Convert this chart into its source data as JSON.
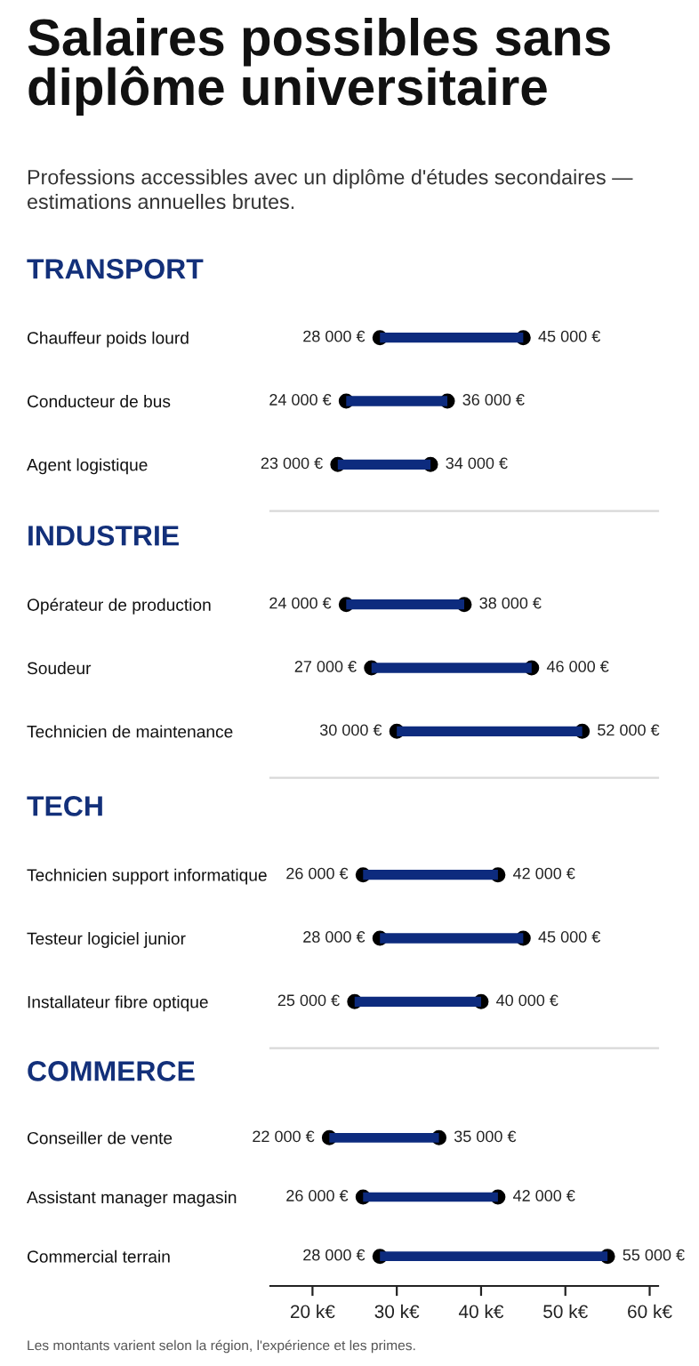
{
  "chart_data": [
    {
      "type": "other",
      "title": "Salaires possibles sans diplôme universitaire",
      "subtitle": "Professions accessibles avec un diplôme d'études secondaires — estimations annuelles brutes."
    },
    {
      "type": "bar",
      "orientation": "horizontal",
      "title": "TRANSPORT",
      "categories": [
        "Chauffeur poids lourd",
        "Conducteur de bus",
        "Agent logistique"
      ],
      "base": [
        28,
        24,
        23
      ],
      "values": [
        17,
        12,
        11
      ],
      "color": "#0d2b7e",
      "marker": "circle",
      "xlim": [
        15,
        61
      ],
      "tick_labels": "y",
      "annotations": [
        {
          "text": "28 000 €",
          "x": 28,
          "y": "Chauffeur poids lourd"
        },
        {
          "text": "45 000 €",
          "x": 45,
          "y": "Chauffeur poids lourd"
        },
        {
          "text": "24 000 €",
          "x": 24,
          "y": "Conducteur de bus"
        },
        {
          "text": "36 000 €",
          "x": 36,
          "y": "Conducteur de bus"
        },
        {
          "text": "23 000 €",
          "x": 23,
          "y": "Agent logistique"
        },
        {
          "text": "34 000 €",
          "x": 34,
          "y": "Agent logistique"
        }
      ]
    },
    {
      "type": "bar",
      "orientation": "horizontal",
      "title": "INDUSTRIE",
      "categories": [
        "Opérateur de production",
        "Soudeur",
        "Technicien de maintenance"
      ],
      "base": [
        24,
        27,
        30
      ],
      "values": [
        14,
        19,
        22
      ],
      "color": "#0d2b7e",
      "marker": "circle",
      "xlim": [
        15,
        61
      ],
      "tick_labels": "y",
      "annotations": [
        {
          "text": "24 000 €",
          "x": 24,
          "y": "Opérateur de production"
        },
        {
          "text": "38 000 €",
          "x": 38,
          "y": "Opérateur de production"
        },
        {
          "text": "27 000 €",
          "x": 27,
          "y": "Soudeur"
        },
        {
          "text": "46 000 €",
          "x": 46,
          "y": "Soudeur"
        },
        {
          "text": "30 000 €",
          "x": 30,
          "y": "Technicien de maintenance"
        },
        {
          "text": "52 000 €",
          "x": 52,
          "y": "Technicien de maintenance"
        }
      ]
    },
    {
      "type": "bar",
      "orientation": "horizontal",
      "title": "TECH",
      "categories": [
        "Technicien support informatique",
        "Testeur logiciel junior",
        "Installateur fibre optique"
      ],
      "base": [
        26,
        28,
        25
      ],
      "values": [
        16,
        17,
        15
      ],
      "color": "#0d2b7e",
      "marker": "circle",
      "xlim": [
        15,
        61
      ],
      "tick_labels": "y",
      "annotations": [
        {
          "text": "26 000 €",
          "x": 26,
          "y": "Technicien support informatique"
        },
        {
          "text": "42 000 €",
          "x": 42,
          "y": "Technicien support informatique"
        },
        {
          "text": "28 000 €",
          "x": 28,
          "y": "Testeur logiciel junior"
        },
        {
          "text": "45 000 €",
          "x": 45,
          "y": "Testeur logiciel junior"
        },
        {
          "text": "25 000 €",
          "x": 25,
          "y": "Installateur fibre optique"
        },
        {
          "text": "40 000 €",
          "x": 40,
          "y": "Installateur fibre optique"
        }
      ]
    },
    {
      "type": "bar",
      "orientation": "horizontal",
      "title": "COMMERCE",
      "categories": [
        "Conseiller de vente",
        "Assistant manager magasin",
        "Commercial terrain"
      ],
      "base": [
        22,
        26,
        28
      ],
      "values": [
        13,
        16,
        27
      ],
      "color": "#0d2b7e",
      "marker": "circle",
      "xlim": [
        15,
        61
      ],
      "xticks": [
        {
          "value": 20,
          "label": "20 k€"
        },
        {
          "value": 30,
          "label": "30 k€"
        },
        {
          "value": 40,
          "label": "40 k€"
        },
        {
          "value": 50,
          "label": "50 k€"
        },
        {
          "value": 60,
          "label": "60 k€"
        }
      ],
      "annotations": [
        {
          "text": "22 000 €",
          "x": 22,
          "y": "Conseiller de vente"
        },
        {
          "text": "35 000 €",
          "x": 35,
          "y": "Conseiller de vente"
        },
        {
          "text": "26 000 €",
          "x": 26,
          "y": "Assistant manager magasin"
        },
        {
          "text": "42 000 €",
          "x": 42,
          "y": "Assistant manager magasin"
        },
        {
          "text": "28 000 €",
          "x": 28,
          "y": "Commercial terrain"
        },
        {
          "text": "55 000 €",
          "x": 55,
          "y": "Commercial terrain"
        },
        "Les montants varient selon la région, l'expérience et les primes."
      ]
    }
  ]
}
